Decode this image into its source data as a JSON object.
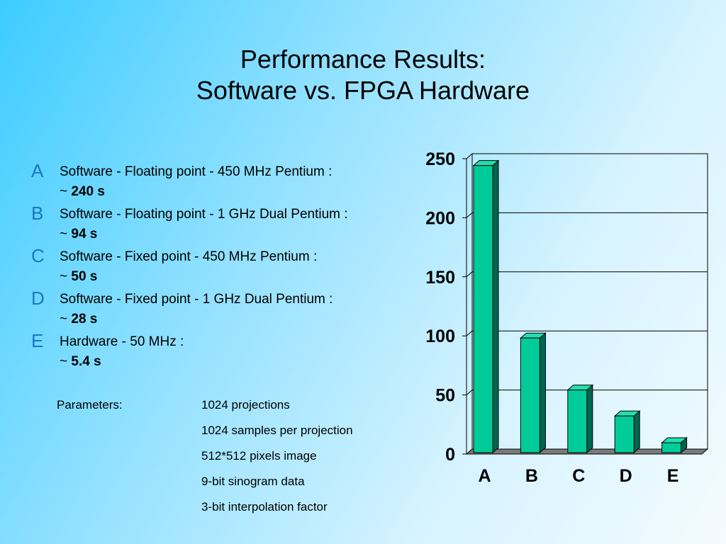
{
  "title": {
    "line1": "Performance Results:",
    "line2": "Software vs. FPGA Hardware"
  },
  "items": [
    {
      "letter": "A",
      "desc": "Software - Floating point - 450 MHz Pentium :",
      "prefix": "~ ",
      "value": "240 s"
    },
    {
      "letter": "B",
      "desc": "Software - Floating point - 1 GHz Dual Pentium :",
      "prefix": "~ ",
      "value": "94 s"
    },
    {
      "letter": "C",
      "desc": "Software - Fixed point - 450 MHz Pentium :",
      "prefix": "~ ",
      "value": "50 s"
    },
    {
      "letter": "D",
      "desc": "Software - Fixed point - 1 GHz Dual Pentium :",
      "prefix": "~ ",
      "value": "28 s"
    },
    {
      "letter": "E",
      "desc": "Hardware - 50 MHz :",
      "prefix": "~ ",
      "value": "5.4 s"
    }
  ],
  "parameters": {
    "label": "Parameters:",
    "values": [
      "1024 projections",
      "1024 samples per projection",
      "512*512 pixels image",
      "9-bit sinogram data",
      "3-bit interpolation factor"
    ]
  },
  "colors": {
    "letter": "#1a78c0",
    "bar_front": "#00cc99",
    "bar_top": "#1fe0ae",
    "bar_side": "#006650",
    "floor": "#7a7a7a"
  },
  "chart_data": {
    "type": "bar",
    "categories": [
      "A",
      "B",
      "C",
      "D",
      "E"
    ],
    "values": [
      240,
      94,
      50,
      28,
      5.4
    ],
    "title": "",
    "xlabel": "",
    "ylabel": "",
    "ylim": [
      0,
      250
    ],
    "yticks": [
      0,
      50,
      100,
      150,
      200,
      250
    ],
    "grid": true,
    "style": "3d"
  }
}
